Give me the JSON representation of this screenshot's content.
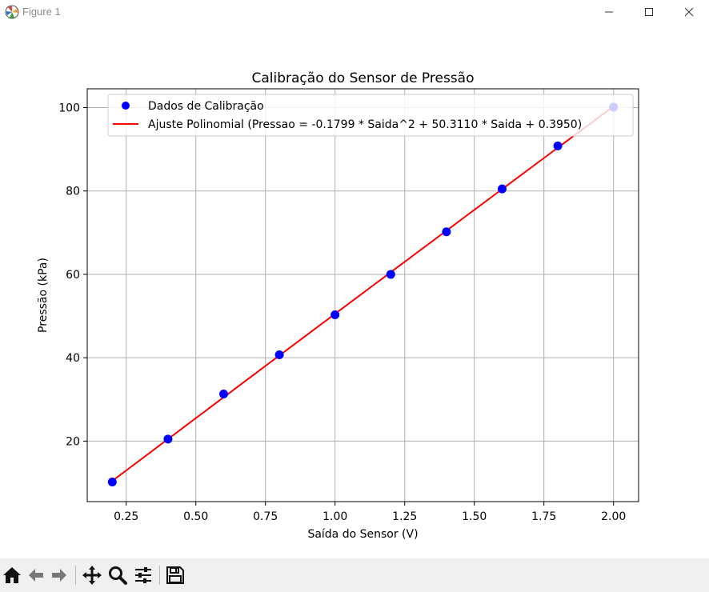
{
  "window": {
    "title": "Figure 1"
  },
  "chart_data": {
    "type": "scatter",
    "title": "Calibração do Sensor de Pressão",
    "xlabel": "Saída do Sensor (V)",
    "ylabel": "Pressão (kPa)",
    "xlim": [
      0.11,
      2.09
    ],
    "ylim": [
      5.5,
      104.5
    ],
    "xticks": [
      0.25,
      0.5,
      0.75,
      1.0,
      1.25,
      1.5,
      1.75,
      2.0
    ],
    "xtick_labels": [
      "0.25",
      "0.50",
      "0.75",
      "1.00",
      "1.25",
      "1.50",
      "1.75",
      "2.00"
    ],
    "yticks": [
      20,
      40,
      60,
      80,
      100
    ],
    "ytick_labels": [
      "20",
      "40",
      "60",
      "80",
      "100"
    ],
    "grid": true,
    "legend": "top-right",
    "series": [
      {
        "name": "Dados de Calibração",
        "kind": "scatter",
        "color": "#0000ff",
        "x": [
          0.2,
          0.4,
          0.6,
          0.8,
          1.0,
          1.2,
          1.4,
          1.6,
          1.8,
          2.0
        ],
        "y": [
          10.2,
          20.5,
          31.3,
          40.7,
          50.3,
          60.0,
          70.2,
          80.5,
          90.8,
          100.1
        ]
      },
      {
        "name": "Ajuste Polinomial (Pressao = -0.1799 * Saida^2 + 50.3110 * Saida + 0.3950)",
        "kind": "line",
        "color": "#ff0000",
        "coefficients": [
          -0.1799,
          50.311,
          0.395
        ],
        "x_range": [
          0.2,
          2.0
        ]
      }
    ]
  },
  "toolbar": {
    "items": [
      "home-icon",
      "back-icon",
      "forward-icon",
      "pan-icon",
      "zoom-icon",
      "subplots-icon",
      "save-icon"
    ]
  }
}
